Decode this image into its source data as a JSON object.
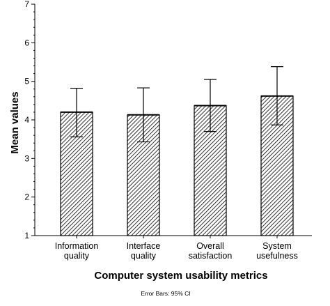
{
  "chart_data": {
    "type": "bar",
    "categories": [
      [
        "Information",
        "quality"
      ],
      [
        "Interface",
        "quality"
      ],
      [
        "Overall",
        "satisfaction"
      ],
      [
        "System",
        "usefulness"
      ]
    ],
    "values": [
      4.2,
      4.13,
      4.37,
      4.62
    ],
    "error_bars": {
      "low": [
        3.56,
        3.43,
        3.7,
        3.87
      ],
      "high": [
        4.82,
        4.83,
        5.05,
        5.38
      ]
    },
    "xlabel": "Computer system usability metrics",
    "ylabel": "Mean values",
    "ylim": [
      1,
      7
    ],
    "yticks": [
      "1",
      "2",
      "3",
      "4",
      "5",
      "6",
      "7"
    ],
    "grid": false,
    "fill_pattern": "diagonal-hatch",
    "footnote": "Error Bars: 95% CI"
  }
}
